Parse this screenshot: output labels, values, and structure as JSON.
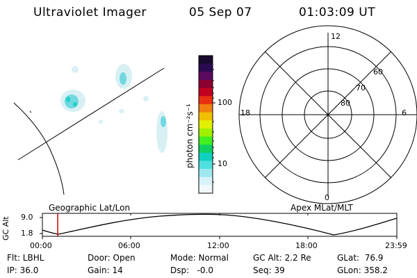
{
  "header": {
    "instrument": "Ultraviolet Imager",
    "date": "05 Sep 07",
    "time": "01:03:09 UT"
  },
  "colorbar": {
    "label": "photon cm⁻²s⁻¹",
    "ticks": [
      "100",
      "10"
    ],
    "colors": [
      "#1a0a30",
      "#2a0a50",
      "#5a0a60",
      "#8a0030",
      "#c00020",
      "#e83010",
      "#f08010",
      "#f0c000",
      "#e0f000",
      "#a0f000",
      "#40f020",
      "#10d060",
      "#10d0c0",
      "#50e0e0",
      "#a0e8f0",
      "#d8f4f8",
      "#f0f8fa"
    ]
  },
  "polar_plot": {
    "mlt_labels": {
      "top": "12",
      "left": "18",
      "right": "6",
      "bottom": "0"
    },
    "lat_labels": [
      "60",
      "70",
      "80"
    ]
  },
  "map_labels": {
    "left": "Geographic Lat/Lon",
    "right": "Apex MLat/MLT"
  },
  "altitude_plot": {
    "axis_label": "GC Alt",
    "y_ticks": [
      "9.0",
      "1.8"
    ],
    "x_ticks": [
      "00:00",
      "06:00",
      "12:00",
      "18:00",
      "23:59"
    ]
  },
  "info": {
    "filter": "Flt: LBHL",
    "ip": "IP: 36.0",
    "door": "Door: Open",
    "gain": "Gain: 14",
    "mode": "Mode: Normal",
    "dsp": "Dsp:   -0.0",
    "gc_alt": "GC Alt: 2.2 Re",
    "seq": "Seq: 39",
    "glat": "GLat:  76.9",
    "glon": "GLon: 358.2"
  }
}
